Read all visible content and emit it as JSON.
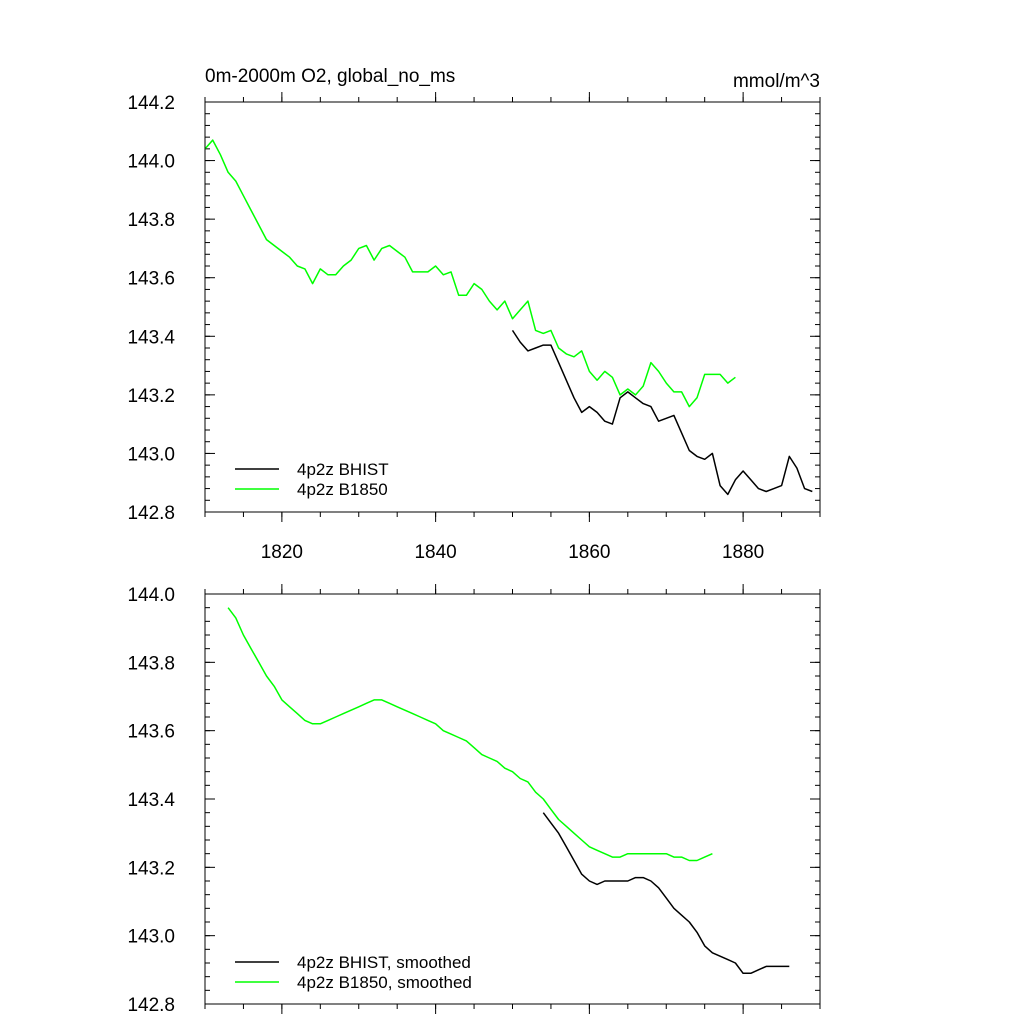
{
  "chart_data": [
    {
      "type": "line",
      "title": "0m-2000m O2, global_no_ms",
      "units": "mmol/m^3",
      "xlim": [
        1810,
        1890
      ],
      "ylim": [
        142.8,
        144.2
      ],
      "x_ticks": [
        1820,
        1840,
        1860,
        1880
      ],
      "y_ticks": [
        142.8,
        143.0,
        143.2,
        143.4,
        143.6,
        143.8,
        144.0,
        144.2
      ],
      "y_tick_labels": [
        "142.8",
        "143.0",
        "143.2",
        "143.4",
        "143.6",
        "143.8",
        "144.0",
        "144.2"
      ],
      "x_tick_labels": [
        "1820",
        "1840",
        "1860",
        "1880"
      ],
      "legend_position": "bottom-left",
      "series": [
        {
          "name": "4p2z BHIST",
          "color": "#000000",
          "x": [
            1850,
            1851,
            1852,
            1853,
            1854,
            1855,
            1856,
            1857,
            1858,
            1859,
            1860,
            1861,
            1862,
            1863,
            1864,
            1865,
            1866,
            1867,
            1868,
            1869,
            1870,
            1871,
            1872,
            1873,
            1874,
            1875,
            1876,
            1877,
            1878,
            1879,
            1880,
            1881,
            1882,
            1883,
            1884,
            1885,
            1886,
            1887,
            1888,
            1889
          ],
          "y": [
            143.42,
            143.38,
            143.35,
            143.36,
            143.37,
            143.37,
            143.31,
            143.25,
            143.19,
            143.14,
            143.16,
            143.14,
            143.11,
            143.1,
            143.19,
            143.21,
            143.19,
            143.17,
            143.16,
            143.11,
            143.12,
            143.13,
            143.07,
            143.01,
            142.99,
            142.98,
            143.0,
            142.89,
            142.86,
            142.91,
            142.94,
            142.91,
            142.88,
            142.87,
            142.88,
            142.89,
            142.99,
            142.95,
            142.88,
            142.87
          ]
        },
        {
          "name": "4p2z B1850",
          "color": "#00ff00",
          "x": [
            1810,
            1811,
            1812,
            1813,
            1814,
            1815,
            1816,
            1817,
            1818,
            1819,
            1820,
            1821,
            1822,
            1823,
            1824,
            1825,
            1826,
            1827,
            1828,
            1829,
            1830,
            1831,
            1832,
            1833,
            1834,
            1835,
            1836,
            1837,
            1838,
            1839,
            1840,
            1841,
            1842,
            1843,
            1844,
            1845,
            1846,
            1847,
            1848,
            1849,
            1850,
            1851,
            1852,
            1853,
            1854,
            1855,
            1856,
            1857,
            1858,
            1859,
            1860,
            1861,
            1862,
            1863,
            1864,
            1865,
            1866,
            1867,
            1868,
            1869,
            1870,
            1871,
            1872,
            1873,
            1874,
            1875,
            1876,
            1877,
            1878,
            1879
          ],
          "y": [
            144.04,
            144.07,
            144.02,
            143.96,
            143.93,
            143.88,
            143.83,
            143.78,
            143.73,
            143.71,
            143.69,
            143.67,
            143.64,
            143.63,
            143.58,
            143.63,
            143.61,
            143.61,
            143.64,
            143.66,
            143.7,
            143.71,
            143.66,
            143.7,
            143.71,
            143.69,
            143.67,
            143.62,
            143.62,
            143.62,
            143.64,
            143.61,
            143.62,
            143.54,
            143.54,
            143.58,
            143.56,
            143.52,
            143.49,
            143.52,
            143.46,
            143.49,
            143.52,
            143.42,
            143.41,
            143.42,
            143.36,
            143.34,
            143.33,
            143.35,
            143.28,
            143.25,
            143.28,
            143.26,
            143.2,
            143.22,
            143.2,
            143.23,
            143.31,
            143.28,
            143.24,
            143.21,
            143.21,
            143.16,
            143.19,
            143.27,
            143.27,
            143.27,
            143.24,
            143.26
          ]
        }
      ]
    },
    {
      "type": "line",
      "xlim": [
        1810,
        1890
      ],
      "ylim": [
        142.8,
        144.0
      ],
      "x_ticks": [
        1820,
        1840,
        1860,
        1880
      ],
      "y_ticks": [
        142.8,
        143.0,
        143.2,
        143.4,
        143.6,
        143.8,
        144.0
      ],
      "y_tick_labels": [
        "142.8",
        "143.0",
        "143.2",
        "143.4",
        "143.6",
        "143.8",
        "144.0"
      ],
      "legend_position": "bottom-left",
      "series": [
        {
          "name": "4p2z BHIST, smoothed",
          "color": "#000000",
          "x": [
            1854,
            1855,
            1856,
            1857,
            1858,
            1859,
            1860,
            1861,
            1862,
            1863,
            1864,
            1865,
            1866,
            1867,
            1868,
            1869,
            1870,
            1871,
            1872,
            1873,
            1874,
            1875,
            1876,
            1877,
            1878,
            1879,
            1880,
            1881,
            1882,
            1883,
            1884,
            1885,
            1886
          ],
          "y": [
            143.36,
            143.33,
            143.3,
            143.26,
            143.22,
            143.18,
            143.16,
            143.15,
            143.16,
            143.16,
            143.16,
            143.16,
            143.17,
            143.17,
            143.16,
            143.14,
            143.11,
            143.08,
            143.06,
            143.04,
            143.01,
            142.97,
            142.95,
            142.94,
            142.93,
            142.92,
            142.89,
            142.89,
            142.9,
            142.91,
            142.91,
            142.91,
            142.91
          ]
        },
        {
          "name": "4p2z B1850, smoothed",
          "color": "#00ff00",
          "x": [
            1813,
            1814,
            1815,
            1816,
            1817,
            1818,
            1819,
            1820,
            1821,
            1822,
            1823,
            1824,
            1825,
            1826,
            1827,
            1828,
            1829,
            1830,
            1831,
            1832,
            1833,
            1834,
            1835,
            1836,
            1837,
            1838,
            1839,
            1840,
            1841,
            1842,
            1843,
            1844,
            1845,
            1846,
            1847,
            1848,
            1849,
            1850,
            1851,
            1852,
            1853,
            1854,
            1855,
            1856,
            1857,
            1858,
            1859,
            1860,
            1861,
            1862,
            1863,
            1864,
            1865,
            1866,
            1867,
            1868,
            1869,
            1870,
            1871,
            1872,
            1873,
            1874,
            1875,
            1876
          ],
          "y": [
            143.96,
            143.93,
            143.88,
            143.84,
            143.8,
            143.76,
            143.73,
            143.69,
            143.67,
            143.65,
            143.63,
            143.62,
            143.62,
            143.63,
            143.64,
            143.65,
            143.66,
            143.67,
            143.68,
            143.69,
            143.69,
            143.68,
            143.67,
            143.66,
            143.65,
            143.64,
            143.63,
            143.62,
            143.6,
            143.59,
            143.58,
            143.57,
            143.55,
            143.53,
            143.52,
            143.51,
            143.49,
            143.48,
            143.46,
            143.45,
            143.42,
            143.4,
            143.37,
            143.34,
            143.32,
            143.3,
            143.28,
            143.26,
            143.25,
            143.24,
            143.23,
            143.23,
            143.24,
            143.24,
            143.24,
            143.24,
            143.24,
            143.24,
            143.23,
            143.23,
            143.22,
            143.22,
            143.23,
            143.24
          ]
        }
      ]
    }
  ]
}
